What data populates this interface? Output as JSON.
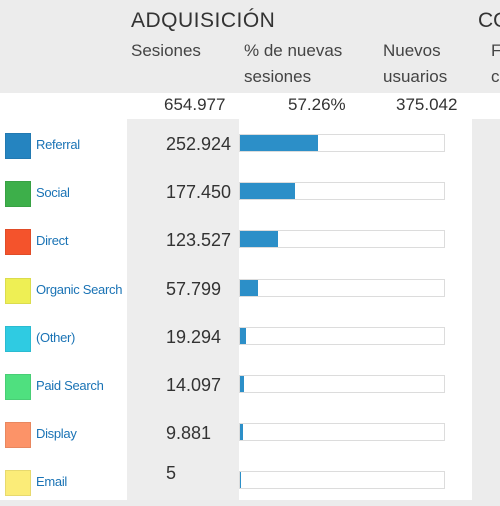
{
  "header": {
    "section_title": "ADQUISICIÓN",
    "section_title_next": "CO",
    "columns": [
      "Sesiones",
      "% de nuevas sesiones",
      "Nuevos usuarios"
    ],
    "column_next_fragment_1": "F",
    "column_next_fragment_2": "c"
  },
  "totals": {
    "sessions": "654.977",
    "new_sessions_pct": "57.26%",
    "new_users": "375.042"
  },
  "rows": [
    {
      "label": "Referral",
      "value": "252.924",
      "pct": 0.383,
      "color": "#2584c0"
    },
    {
      "label": "Social",
      "value": "177.450",
      "pct": 0.269,
      "color": "#3daf4a"
    },
    {
      "label": "Direct",
      "value": "123.527",
      "pct": 0.187,
      "color": "#f4532c"
    },
    {
      "label": "Organic Search",
      "value": "57.799",
      "pct": 0.087,
      "color": "#eeef54"
    },
    {
      "label": "(Other)",
      "value": "19.294",
      "pct": 0.029,
      "color": "#2fcbe2"
    },
    {
      "label": "Paid Search",
      "value": "14.097",
      "pct": 0.021,
      "color": "#4fe07f"
    },
    {
      "label": "Display",
      "value": "9.881",
      "pct": 0.015,
      "color": "#fc9368"
    },
    {
      "label": "Email",
      "value": "5",
      "pct": 0.005,
      "color": "#fbec78"
    }
  ],
  "colors": {
    "bar": "#2c8fc8",
    "link": "#1a73b5"
  }
}
